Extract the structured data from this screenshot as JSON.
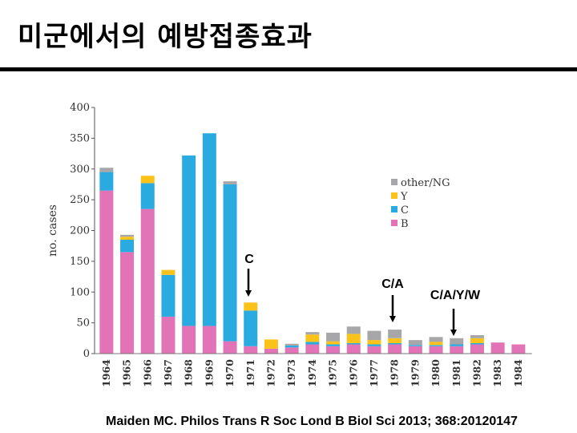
{
  "slide": {
    "title": "미군에서의 예방접종효과",
    "citation": "Maiden MC. Philos Trans R Soc Lond B Biol Sci 2013; 368:20120147"
  },
  "colors": {
    "B": "#e173b6",
    "C": "#29abe2",
    "Y": "#fbc319",
    "other": "#a7a7a9"
  },
  "chart_data": {
    "type": "bar",
    "stacked": true,
    "categories": [
      "1964",
      "1965",
      "1966",
      "1967",
      "1968",
      "1969",
      "1970",
      "1971",
      "1972",
      "1973",
      "1974",
      "1975",
      "1976",
      "1977",
      "1978",
      "1979",
      "1980",
      "1981",
      "1982",
      "1983",
      "1984"
    ],
    "series": [
      {
        "name": "B",
        "values": [
          265,
          165,
          235,
          60,
          45,
          45,
          20,
          12,
          8,
          10,
          15,
          12,
          15,
          12,
          15,
          12,
          12,
          12,
          15,
          18,
          15
        ]
      },
      {
        "name": "C",
        "values": [
          30,
          20,
          42,
          68,
          277,
          313,
          255,
          58,
          0,
          3,
          4,
          3,
          2,
          3,
          2,
          2,
          2,
          3,
          2,
          0,
          0
        ]
      },
      {
        "name": "Y",
        "values": [
          0,
          5,
          12,
          8,
          0,
          0,
          0,
          13,
          15,
          0,
          12,
          5,
          15,
          7,
          8,
          0,
          5,
          0,
          8,
          0,
          0
        ]
      },
      {
        "name": "other/NG",
        "values": [
          7,
          3,
          0,
          0,
          0,
          0,
          5,
          0,
          0,
          3,
          4,
          14,
          12,
          15,
          14,
          8,
          8,
          10,
          5,
          0,
          0
        ]
      }
    ],
    "ylabel": "no. cases",
    "xlabel": "",
    "ylim": [
      0,
      400
    ],
    "yticks": [
      0,
      50,
      100,
      150,
      200,
      250,
      300,
      350,
      400
    ],
    "legend": [
      "other/NG",
      "Y",
      "C",
      "B"
    ],
    "legend_position": "top-right",
    "grid": false,
    "annotations": [
      {
        "text": "C",
        "year": "1971"
      },
      {
        "text": "C/A",
        "year": "1978"
      },
      {
        "text": "C/A/Y/W",
        "year": "1981"
      }
    ]
  }
}
